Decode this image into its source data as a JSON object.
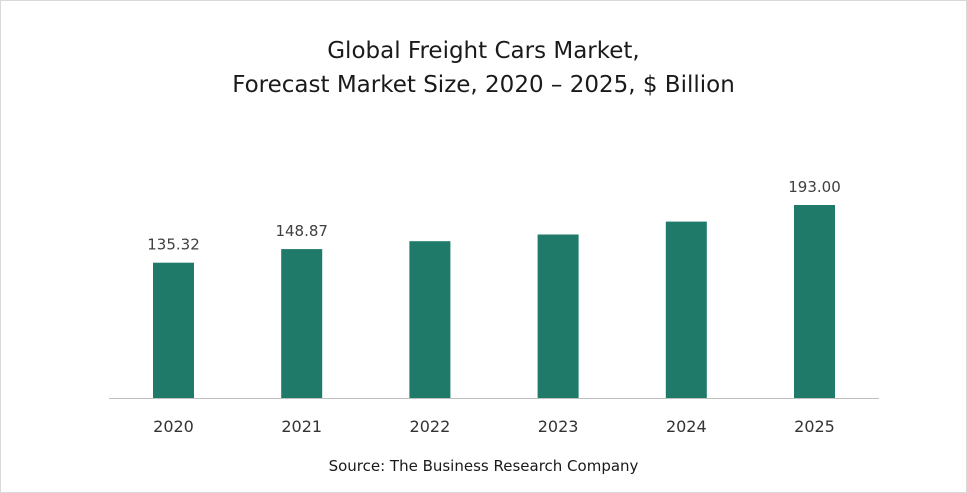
{
  "chart_data": {
    "type": "bar",
    "title_line1": "Global Freight Cars Market,",
    "title_line2": "Forecast Market Size, 2020 – 2025, $ Billion",
    "categories": [
      "2020",
      "2021",
      "2022",
      "2023",
      "2024",
      "2025"
    ],
    "values": [
      135.32,
      148.87,
      156.8,
      163.5,
      176.4,
      193.0
    ],
    "data_labels": [
      "135.32",
      "148.87",
      "",
      "",
      "",
      "193.00"
    ],
    "xlabel": "",
    "ylabel": "",
    "ylim": [
      0,
      210
    ],
    "grid": false,
    "bar_color": "#1f7a6a",
    "axis_color": "#bfbfbf"
  },
  "source": "Source: The Business Research Company"
}
